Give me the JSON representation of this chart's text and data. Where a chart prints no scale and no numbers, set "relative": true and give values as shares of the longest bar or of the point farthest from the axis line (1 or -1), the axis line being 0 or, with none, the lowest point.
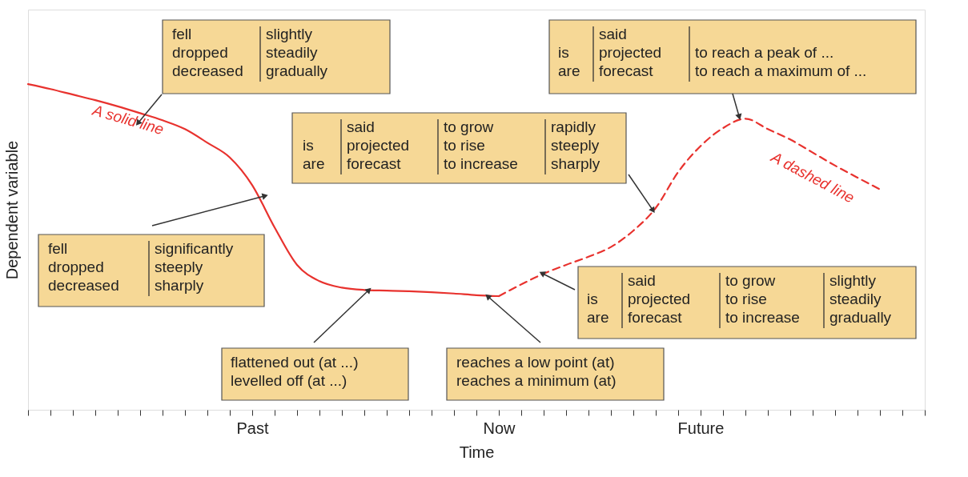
{
  "chart_data": {
    "type": "line",
    "relative": true,
    "xlabel": "Time",
    "ylabel": "Dependent variable",
    "categories": [
      null,
      null,
      null,
      null,
      null,
      null,
      null,
      null,
      null,
      null,
      "Past",
      null,
      null,
      null,
      null,
      null,
      null,
      null,
      null,
      null,
      null,
      "Now",
      null,
      null,
      null,
      null,
      null,
      null,
      null,
      null,
      "Future",
      null,
      null,
      null,
      null,
      null,
      null,
      null,
      null,
      null,
      null
    ],
    "series": [
      {
        "name": "A solid line",
        "color": "#e8322e",
        "line_style": "solid",
        "values": [
          1.0,
          0.985,
          0.968,
          0.951,
          0.932,
          0.911,
          0.889,
          0.862,
          0.82,
          0.775,
          0.69,
          0.56,
          0.445,
          0.395,
          0.375,
          0.368,
          0.366,
          0.364,
          0.361,
          0.357,
          0.352,
          0.349,
          null,
          null,
          null,
          null,
          null,
          null,
          null,
          null,
          null,
          null,
          null,
          null,
          null,
          null,
          null,
          null,
          null,
          null,
          null
        ]
      },
      {
        "name": "A dashed line",
        "color": "#e8322e",
        "line_style": "dashed",
        "values": [
          null,
          null,
          null,
          null,
          null,
          null,
          null,
          null,
          null,
          null,
          null,
          null,
          null,
          null,
          null,
          null,
          null,
          null,
          null,
          null,
          null,
          0.349,
          0.385,
          0.418,
          0.445,
          0.47,
          0.5,
          0.55,
          0.62,
          0.73,
          0.81,
          0.865,
          0.894,
          0.862,
          0.83,
          0.79,
          0.75,
          0.713,
          0.677,
          null,
          null
        ]
      }
    ],
    "annotations": [
      "fell\ndropped\ndecreased",
      "slightly\nsteadily\ngradually",
      "fell\ndropped\ndecreased",
      "significantly\nsteeply\nsharply",
      "is\nare",
      "said\nprojected\nforecast",
      "to grow\nto rise\nto increase",
      "rapidly\nsteeply\nsharply",
      "is\nare",
      "said\nprojected\nforecast",
      "to reach a peak of ...\nto reach a maximum of ...",
      "is\nare",
      "said\nprojected\nforecast",
      "to grow\nto rise\nto increase",
      "slightly\nsteadily\ngradually",
      "flattened out (at ...)\nlevelled off (at ...)",
      "reaches a low point (at)\nreaches a minimum (at)"
    ]
  }
}
